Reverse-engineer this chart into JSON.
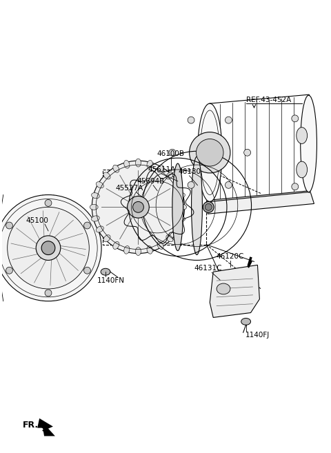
{
  "bg_color": "#ffffff",
  "lc": "#000000",
  "fig_width": 4.8,
  "fig_height": 6.57,
  "dpi": 100,
  "labels": {
    "REF_43_452A": "REF.43-452A",
    "46100B": "46100B",
    "45611A": "45611A",
    "46130": "46130",
    "45694B": "45694B",
    "45527A": "45527A",
    "45100": "45100",
    "1140FN": "1140FN",
    "46120C": "46120C",
    "46131C": "46131C",
    "1140FJ": "1140FJ",
    "FR": "FR."
  }
}
